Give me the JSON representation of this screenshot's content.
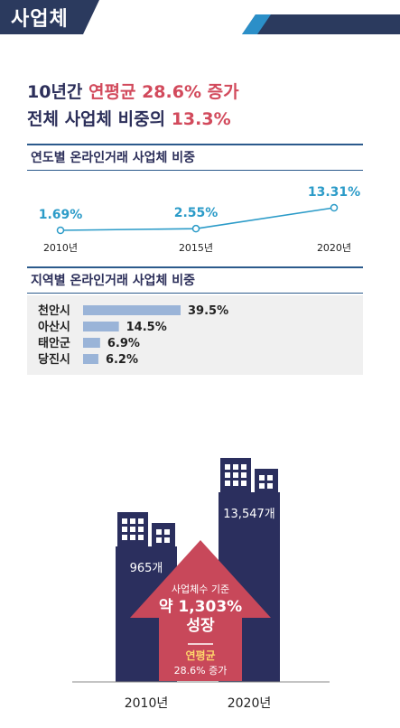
{
  "banner": {
    "title": "사업체",
    "color": "#2b3a5e",
    "accent": "#2b8fc8"
  },
  "headline": {
    "line1_prefix": "10년간 ",
    "line1_accent": "연평균 28.6% 증가",
    "line2_prefix": "전체 사업체 비중의 ",
    "line2_accent": "13.3%"
  },
  "chart_data": [
    {
      "type": "line",
      "title": "연도별 온라인거래 사업체 비중",
      "x": [
        "2010년",
        "2015년",
        "2020년"
      ],
      "series": [
        {
          "values": [
            1.69,
            2.55,
            13.31
          ]
        }
      ],
      "data_labels": [
        "1.69%",
        "2.55%",
        "13.31%"
      ],
      "color": "#2b9bc8"
    },
    {
      "type": "bar",
      "title": "지역별 온라인거래 사업체 비중",
      "categories": [
        "천안시",
        "아산시",
        "태안군",
        "당진시"
      ],
      "values": [
        39.5,
        14.5,
        6.9,
        6.2
      ],
      "data_labels": [
        "39.5%",
        "14.5%",
        "6.9%",
        "6.2%"
      ],
      "color": "#9ab4d8"
    },
    {
      "type": "bar",
      "categories": [
        "2010년",
        "2020년"
      ],
      "values": [
        965,
        13547
      ],
      "data_labels": [
        "965개",
        "13,547개"
      ],
      "color": "#2b2f5e"
    }
  ],
  "growth": {
    "line1": "사업체수 기준",
    "line2": "약 1,303%",
    "line3": "성장",
    "line4": "연평균",
    "line5": "28.6% 증가",
    "color": "#c8485a",
    "highlight": "#ffd86b"
  }
}
